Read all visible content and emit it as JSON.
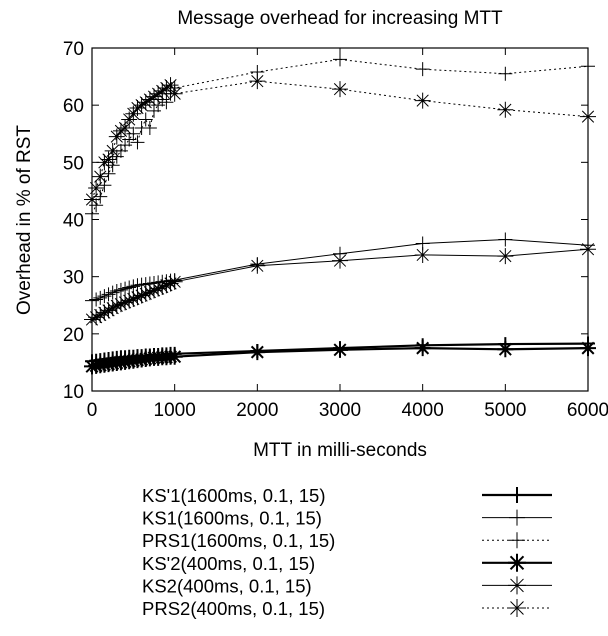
{
  "chart_data": {
    "type": "line",
    "title": "Message overhead for increasing MTT",
    "xlabel": "MTT in milli-seconds",
    "ylabel": "Overhead in % of RST",
    "xlim": [
      0,
      6000
    ],
    "ylim": [
      10,
      70
    ],
    "xticks": [
      0,
      1000,
      2000,
      3000,
      4000,
      5000,
      6000
    ],
    "yticks": [
      10,
      20,
      30,
      40,
      50,
      60,
      70
    ],
    "grid": false,
    "legend_position": "bottom",
    "series": [
      {
        "name": "KS'1(1600ms, 0.1, 15)",
        "marker": "plus",
        "dash": "solid",
        "width": 2.2,
        "x": [
          0,
          50,
          100,
          150,
          200,
          250,
          300,
          350,
          400,
          450,
          500,
          550,
          600,
          650,
          700,
          750,
          800,
          850,
          900,
          950,
          1000,
          2000,
          3000,
          4000,
          5000,
          6000
        ],
        "y": [
          15.2,
          15.3,
          15.4,
          15.5,
          15.6,
          15.7,
          15.8,
          15.9,
          15.9,
          16.0,
          16.0,
          16.1,
          16.1,
          16.2,
          16.2,
          16.3,
          16.3,
          16.4,
          16.4,
          16.5,
          16.5,
          17.0,
          17.5,
          18.0,
          18.2,
          18.3
        ]
      },
      {
        "name": "KS1(1600ms, 0.1, 15)",
        "marker": "plus",
        "dash": "solid",
        "width": 1,
        "x": [
          0,
          50,
          100,
          150,
          200,
          250,
          300,
          350,
          400,
          450,
          500,
          550,
          600,
          650,
          700,
          750,
          800,
          850,
          900,
          950,
          1000,
          2000,
          3000,
          4000,
          5000,
          6000
        ],
        "y": [
          25.8,
          26.0,
          26.3,
          26.6,
          26.9,
          27.2,
          27.5,
          27.7,
          27.9,
          28.1,
          28.3,
          28.5,
          28.6,
          28.7,
          28.8,
          28.9,
          29.0,
          29.1,
          29.2,
          29.3,
          29.4,
          32.2,
          34.0,
          35.8,
          36.5,
          35.5
        ]
      },
      {
        "name": "PRS1(1600ms, 0.1, 15)",
        "marker": "plus",
        "dash": "dotted",
        "width": 1,
        "x": [
          0,
          50,
          100,
          150,
          200,
          250,
          300,
          350,
          400,
          450,
          500,
          550,
          600,
          650,
          700,
          750,
          800,
          850,
          900,
          950,
          1000,
          2000,
          3000,
          4000,
          5000,
          6000
        ],
        "y": [
          41.0,
          42.5,
          44.0,
          46.0,
          48.0,
          49.5,
          51.0,
          52.0,
          53.0,
          54.0,
          55.0,
          53.5,
          56.0,
          57.5,
          56.0,
          59.0,
          60.0,
          61.0,
          60.5,
          62.0,
          63.0,
          65.8,
          68.0,
          66.3,
          65.5,
          66.8
        ]
      },
      {
        "name": "KS'2(400ms, 0.1, 15)",
        "marker": "star",
        "dash": "solid",
        "width": 2.2,
        "x": [
          0,
          50,
          100,
          150,
          200,
          250,
          300,
          350,
          400,
          450,
          500,
          550,
          600,
          650,
          700,
          750,
          800,
          850,
          900,
          950,
          1000,
          2000,
          3000,
          4000,
          5000,
          6000
        ],
        "y": [
          14.3,
          14.4,
          14.5,
          14.6,
          14.7,
          14.8,
          14.9,
          15.0,
          15.1,
          15.2,
          15.3,
          15.4,
          15.5,
          15.6,
          15.7,
          15.8,
          15.8,
          15.9,
          15.9,
          16.0,
          16.0,
          16.8,
          17.2,
          17.5,
          17.3,
          17.5
        ]
      },
      {
        "name": "KS2(400ms, 0.1, 15)",
        "marker": "star",
        "dash": "solid",
        "width": 1,
        "x": [
          0,
          50,
          100,
          150,
          200,
          250,
          300,
          350,
          400,
          450,
          500,
          550,
          600,
          650,
          700,
          750,
          800,
          850,
          900,
          950,
          1000,
          2000,
          3000,
          4000,
          5000,
          6000
        ],
        "y": [
          22.5,
          22.9,
          23.3,
          23.7,
          24.1,
          24.5,
          24.9,
          25.2,
          25.5,
          25.8,
          26.1,
          26.4,
          26.7,
          27.0,
          27.3,
          27.6,
          27.9,
          28.2,
          28.5,
          28.8,
          29.1,
          31.9,
          32.8,
          33.8,
          33.6,
          34.8
        ]
      },
      {
        "name": "PRS2(400ms, 0.1, 15)",
        "marker": "star",
        "dash": "dotted",
        "width": 1,
        "x": [
          0,
          50,
          100,
          150,
          200,
          250,
          300,
          350,
          400,
          450,
          500,
          550,
          600,
          650,
          700,
          750,
          800,
          850,
          900,
          950,
          1000,
          2000,
          3000,
          4000,
          5000,
          6000
        ],
        "y": [
          43.5,
          45.5,
          47.5,
          50.0,
          50.5,
          52.0,
          54.5,
          55.5,
          56.0,
          57.5,
          58.5,
          59.5,
          60.0,
          60.5,
          61.0,
          61.5,
          62.0,
          62.5,
          63.0,
          63.5,
          62.0,
          64.2,
          62.8,
          60.8,
          59.2,
          58.0
        ]
      }
    ]
  }
}
